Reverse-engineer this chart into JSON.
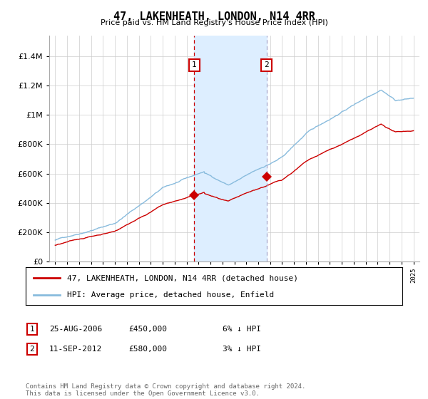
{
  "title": "47, LAKENHEATH, LONDON, N14 4RR",
  "subtitle": "Price paid vs. HM Land Registry's House Price Index (HPI)",
  "ytick_values": [
    0,
    200000,
    400000,
    600000,
    800000,
    1000000,
    1200000,
    1400000
  ],
  "ylim": [
    0,
    1540000
  ],
  "xlim_start": 1994.5,
  "xlim_end": 2025.5,
  "transaction1": {
    "date": "25-AUG-2006",
    "price": 450000,
    "year": 2006.65,
    "label": "1",
    "pct": "6% ↓ HPI"
  },
  "transaction2": {
    "date": "11-SEP-2012",
    "price": 580000,
    "year": 2012.7,
    "label": "2",
    "pct": "3% ↓ HPI"
  },
  "shade_color": "#ddeeff",
  "line1_color": "#cc0000",
  "line2_color": "#88bbdd",
  "vline1_color": "#cc0000",
  "vline2_color": "#aaaacc",
  "marker_box_color": "#cc0000",
  "legend_label1": "47, LAKENHEATH, LONDON, N14 4RR (detached house)",
  "legend_label2": "HPI: Average price, detached house, Enfield",
  "footnote": "Contains HM Land Registry data © Crown copyright and database right 2024.\nThis data is licensed under the Open Government Licence v3.0.",
  "background_color": "#ffffff",
  "grid_color": "#cccccc"
}
